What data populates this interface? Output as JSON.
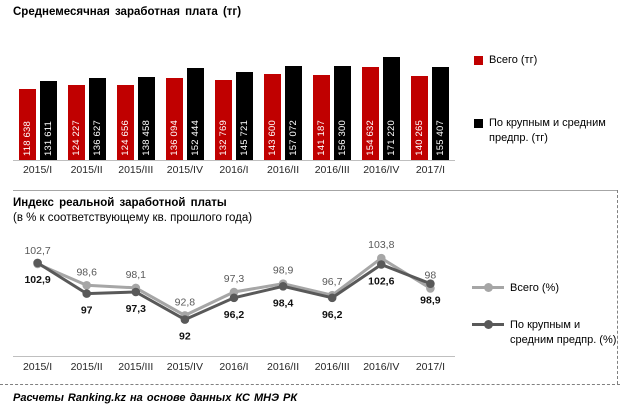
{
  "colors": {
    "bar_total": "#C00000",
    "bar_large_medium": "#000000",
    "line_total": "#A6A6A6",
    "line_large_medium": "#595959",
    "axis": "#BFBFBF",
    "separator": "#A6A6A6",
    "bar_value_label": "#FFFFFF"
  },
  "chart_data": [
    {
      "type": "bar",
      "title": "Среднемесячная заработная плата (тг)",
      "categories": [
        "2015/I",
        "2015/II",
        "2015/III",
        "2015/IV",
        "2016/I",
        "2016/II",
        "2016/III",
        "2016/IV",
        "2017/I"
      ],
      "series": [
        {
          "name": "Всего (тг)",
          "color": "#C00000",
          "values": [
            118638,
            124227,
            124656,
            136094,
            132769,
            143600,
            141187,
            154632,
            140265
          ],
          "labels": [
            "118 638",
            "124 227",
            "124 656",
            "136 094",
            "132 769",
            "143 600",
            "141 187",
            "154 632",
            "140 265"
          ]
        },
        {
          "name": "По крупным и средним предпр. (тг)",
          "color": "#000000",
          "values": [
            131611,
            136627,
            138458,
            152444,
            145721,
            157072,
            156300,
            171220,
            155407
          ],
          "labels": [
            "131 611",
            "136 627",
            "138 458",
            "152 444",
            "145 721",
            "157 072",
            "156 300",
            "171 220",
            "155 407"
          ]
        }
      ],
      "ylim": [
        0,
        200000
      ],
      "grid": false,
      "legend_position": "right",
      "value_labels": "inside-vertical-white"
    },
    {
      "type": "line",
      "title": "Индекс реальной заработной платы",
      "subtitle": "(в % к соответствующему  кв. прошлого года)",
      "categories": [
        "2015/I",
        "2015/II",
        "2015/III",
        "2015/IV",
        "2016/I",
        "2016/II",
        "2016/III",
        "2016/IV",
        "2017/I"
      ],
      "series": [
        {
          "name": "Всего (%)",
          "color": "#A6A6A6",
          "values": [
            102.7,
            98.6,
            98.1,
            92.8,
            97.3,
            98.9,
            96.7,
            103.8,
            98
          ],
          "labels": [
            "102,7",
            "98,6",
            "98,1",
            "92,8",
            "97,3",
            "98,9",
            "96,7",
            "103,8",
            "98"
          ],
          "label_placement": "above"
        },
        {
          "name": "По крупным и средним предпр. (%)",
          "color": "#595959",
          "values": [
            102.9,
            97,
            97.3,
            92,
            96.2,
            98.4,
            96.2,
            102.6,
            98.9
          ],
          "labels": [
            "102,9",
            "97",
            "97,3",
            "92",
            "96,2",
            "98,4",
            "96,2",
            "102,6",
            "98,9"
          ],
          "label_placement": "below"
        }
      ],
      "grid": false,
      "legend_position": "right"
    }
  ],
  "footer": {
    "source_note": "Расчеты Ranking.kz на основе данных КС МНЭ РК"
  }
}
